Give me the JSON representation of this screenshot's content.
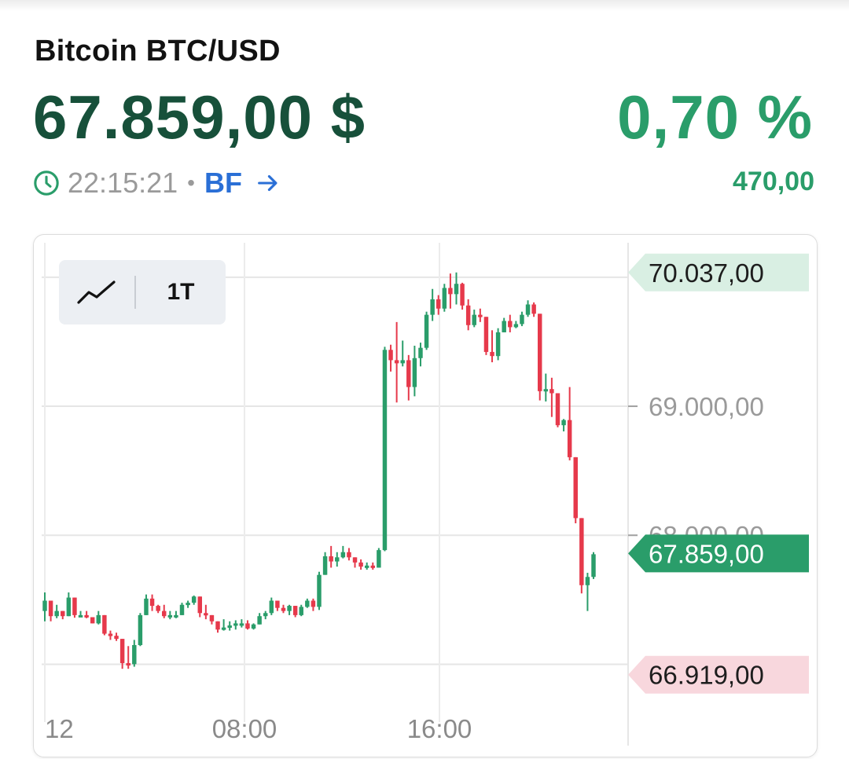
{
  "header": {
    "title": "Bitcoin BTC/USD",
    "price": "67.859,00 $",
    "change_percent": "0,70 %",
    "time": "22:15:21",
    "separator": "•",
    "exchange": "BF",
    "change_absolute": "470,00"
  },
  "toolbar": {
    "chart_icon": "line-chart-icon",
    "range_label": "1T"
  },
  "colors": {
    "up": "#2a9d6a",
    "down": "#e6394b",
    "price_dark": "#17503a",
    "link": "#2a6fd6"
  },
  "chart_data": {
    "type": "candlestick",
    "x_ticks": [
      "12",
      "08:00",
      "16:00"
    ],
    "y_ticks": [
      "68.000,00",
      "69.000,00"
    ],
    "ylim": [
      66820,
      70060
    ],
    "markers": [
      {
        "label": "70.037,00",
        "value": 70037,
        "kind": "high"
      },
      {
        "label": "67.859,00",
        "value": 67859,
        "kind": "last"
      },
      {
        "label": "66.919,00",
        "value": 66919,
        "kind": "low"
      }
    ],
    "candles": [
      [
        67413,
        67557,
        67333,
        67493
      ],
      [
        67493,
        67493,
        67333,
        67373
      ],
      [
        67373,
        67461,
        67357,
        67413
      ],
      [
        67413,
        67413,
        67349,
        67373
      ],
      [
        67373,
        67557,
        67373,
        67517
      ],
      [
        67517,
        67517,
        67361,
        67381
      ],
      [
        67381,
        67413,
        67365,
        67381
      ],
      [
        67381,
        67413,
        67357,
        67365
      ],
      [
        67365,
        67365,
        67317,
        67317
      ],
      [
        67317,
        67413,
        67309,
        67381
      ],
      [
        67381,
        67381,
        67225,
        67237
      ],
      [
        67237,
        67261,
        67189,
        67221
      ],
      [
        67221,
        67245,
        67181,
        67197
      ],
      [
        67197,
        67197,
        66965,
        67009
      ],
      [
        67009,
        67141,
        66965,
        67001
      ],
      [
        67001,
        67189,
        66981,
        67149
      ],
      [
        67149,
        67397,
        67141,
        67381
      ],
      [
        67381,
        67541,
        67381,
        67509
      ],
      [
        67509,
        67541,
        67413,
        67453
      ],
      [
        67453,
        67461,
        67397,
        67413
      ],
      [
        67413,
        67461,
        67357,
        67373
      ],
      [
        67373,
        67413,
        67349,
        67381
      ],
      [
        67381,
        67413,
        67357,
        67381
      ],
      [
        67381,
        67477,
        67381,
        67461
      ],
      [
        67461,
        67493,
        67437,
        67477
      ],
      [
        67477,
        67533,
        67461,
        67525
      ],
      [
        67525,
        67525,
        67365,
        67397
      ],
      [
        67397,
        67461,
        67349,
        67381
      ],
      [
        67381,
        67381,
        67309,
        67333
      ],
      [
        67333,
        67333,
        67245,
        67269
      ],
      [
        67269,
        67349,
        67261,
        67285
      ],
      [
        67285,
        67333,
        67261,
        67301
      ],
      [
        67301,
        67341,
        67269,
        67317
      ],
      [
        67317,
        67349,
        67285,
        67317
      ],
      [
        67317,
        67341,
        67269,
        67277
      ],
      [
        67277,
        67317,
        67269,
        67309
      ],
      [
        67309,
        67397,
        67309,
        67373
      ],
      [
        67373,
        67413,
        67349,
        67397
      ],
      [
        67397,
        67517,
        67381,
        67493
      ],
      [
        67493,
        67493,
        67413,
        67437
      ],
      [
        67437,
        67461,
        67397,
        67413
      ],
      [
        67413,
        67461,
        67381,
        67453
      ],
      [
        67453,
        67453,
        67365,
        67381
      ],
      [
        67381,
        67461,
        67373,
        67445
      ],
      [
        67445,
        67509,
        67437,
        67493
      ],
      [
        67493,
        67509,
        67413,
        67445
      ],
      [
        67445,
        67717,
        67421,
        67693
      ],
      [
        67693,
        67869,
        67693,
        67837
      ],
      [
        67837,
        67917,
        67749,
        67797
      ],
      [
        67797,
        67869,
        67757,
        67829
      ],
      [
        67829,
        67917,
        67821,
        67869
      ],
      [
        67869,
        67901,
        67805,
        67829
      ],
      [
        67829,
        67829,
        67749,
        67789
      ],
      [
        67789,
        67813,
        67733,
        67757
      ],
      [
        67757,
        67789,
        67733,
        67765
      ],
      [
        67765,
        67789,
        67733,
        67749
      ],
      [
        67749,
        67901,
        67749,
        67885
      ],
      [
        67885,
        69461,
        67877,
        69437
      ],
      [
        69437,
        69477,
        69269,
        69357
      ],
      [
        69357,
        69653,
        69029,
        69333
      ],
      [
        69333,
        69509,
        69309,
        69357
      ],
      [
        69357,
        69397,
        69045,
        69149
      ],
      [
        69149,
        69469,
        69077,
        69373
      ],
      [
        69373,
        69493,
        69309,
        69453
      ],
      [
        69453,
        69733,
        69437,
        69709
      ],
      [
        69709,
        69909,
        69661,
        69829
      ],
      [
        69829,
        69861,
        69709,
        69757
      ],
      [
        69757,
        69949,
        69733,
        69917
      ],
      [
        69917,
        70029,
        69757,
        69869
      ],
      [
        69869,
        70037,
        69789,
        69949
      ],
      [
        69949,
        69957,
        69749,
        69781
      ],
      [
        69781,
        69829,
        69589,
        69629
      ],
      [
        69629,
        69749,
        69613,
        69709
      ],
      [
        69709,
        69757,
        69653,
        69693
      ],
      [
        69693,
        69693,
        69397,
        69421
      ],
      [
        69421,
        69589,
        69341,
        69389
      ],
      [
        69389,
        69605,
        69357,
        69573
      ],
      [
        69573,
        69685,
        69573,
        69661
      ],
      [
        69661,
        69709,
        69573,
        69613
      ],
      [
        69613,
        69661,
        69605,
        69637
      ],
      [
        69637,
        69733,
        69621,
        69709
      ],
      [
        69709,
        69821,
        69693,
        69789
      ],
      [
        69789,
        69805,
        69693,
        69717
      ],
      [
        69717,
        69717,
        69045,
        69117
      ],
      [
        69117,
        69253,
        69037,
        69133
      ],
      [
        69133,
        69221,
        68917,
        69101
      ],
      [
        69101,
        69101,
        68837,
        68853
      ],
      [
        68853,
        68901,
        68805,
        68893
      ],
      [
        68893,
        69149,
        68581,
        68605
      ],
      [
        68605,
        68605,
        68093,
        68133
      ],
      [
        68133,
        68133,
        67549,
        67613
      ],
      [
        67613,
        67709,
        67413,
        67677
      ],
      [
        67677,
        67869,
        67661,
        67853
      ]
    ]
  }
}
